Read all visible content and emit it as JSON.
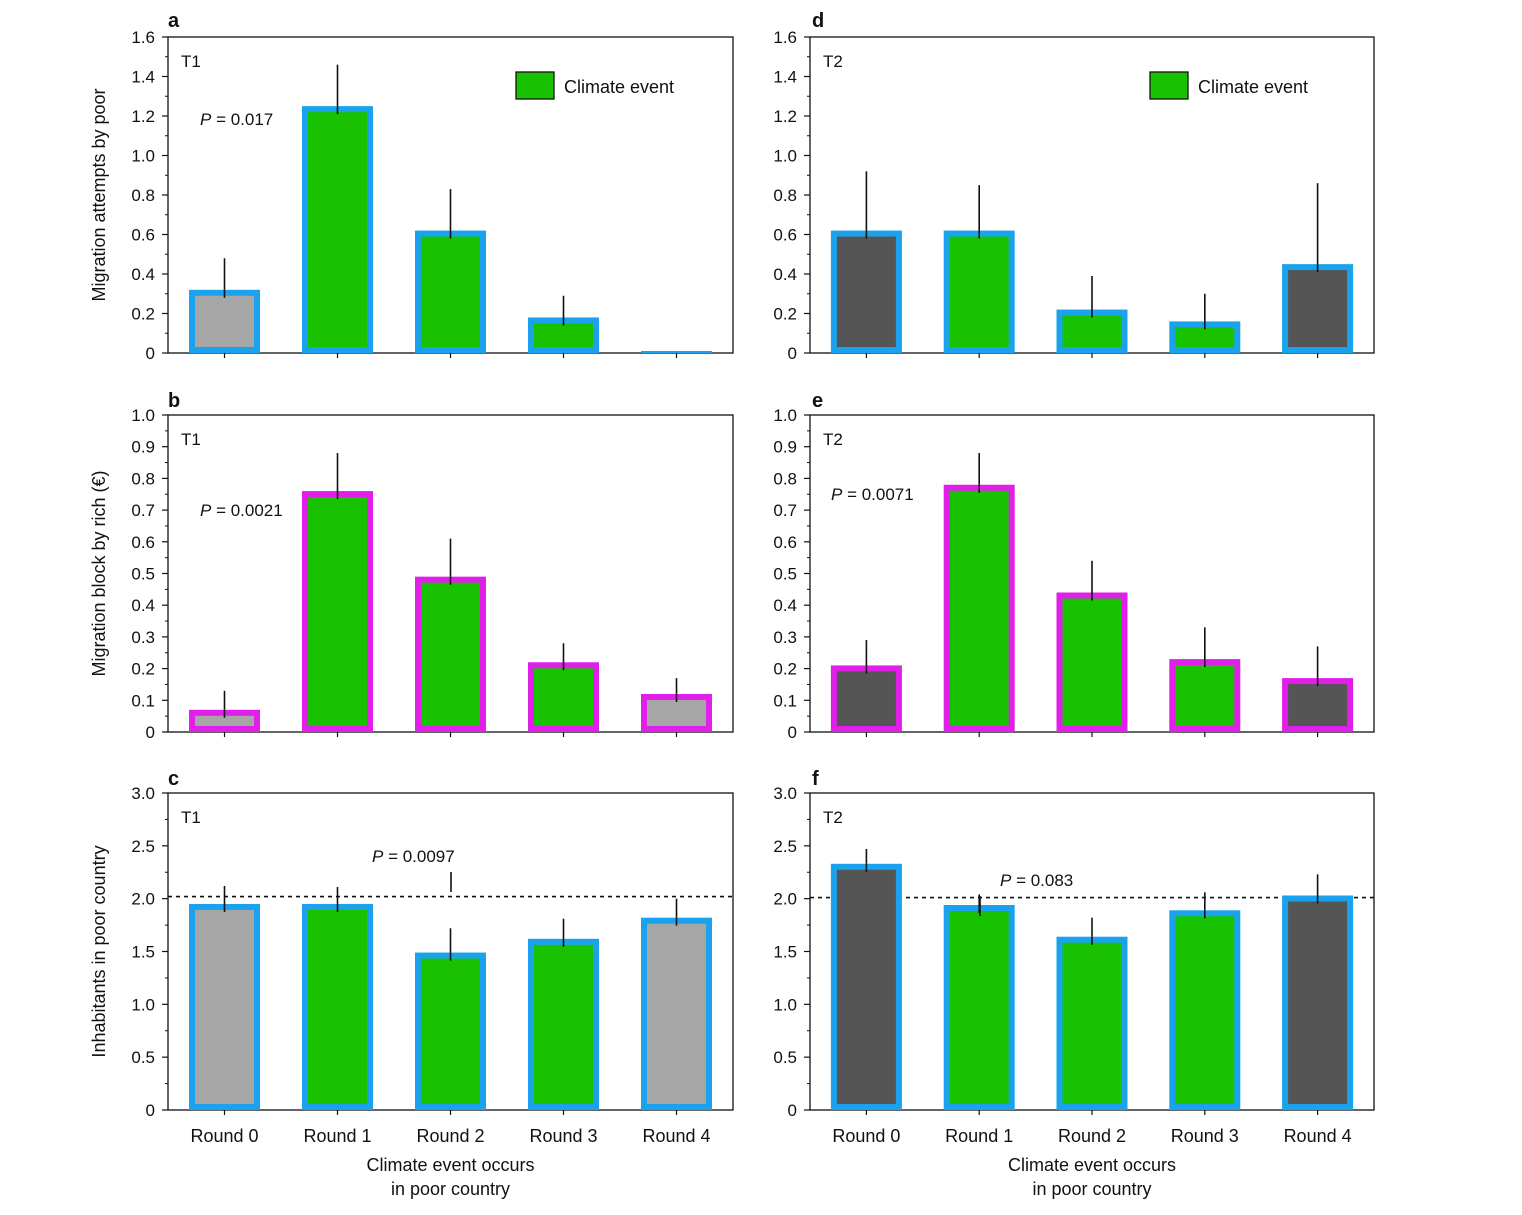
{
  "colors": {
    "climate": "#19c200",
    "no_event_t1": "#a6a6a6",
    "no_event_t2": "#555555",
    "outline_blue": "#1aa3ec",
    "outline_magenta": "#e01fe8",
    "axis": "#111111"
  },
  "legend": {
    "label": "Climate event"
  },
  "xlabel_lines": [
    "Climate event occurs",
    "in poor country"
  ],
  "chart_data": [
    {
      "panel": "a",
      "tag": "T1",
      "type": "bar",
      "ylabel": "Migration attempts by poor",
      "ylim": [
        0,
        1.6
      ],
      "yticks": [
        0,
        0.2,
        0.4,
        0.6,
        0.8,
        1.0,
        1.2,
        1.4,
        1.6
      ],
      "yticklabels": [
        "0",
        "0.2",
        "0.4",
        "0.6",
        "0.8",
        "1.0",
        "1.2",
        "1.4",
        "1.6"
      ],
      "categories": [
        "Round 0",
        "Round 1",
        "Round 2",
        "Round 3",
        "Round 4"
      ],
      "values": [
        0.32,
        1.25,
        0.62,
        0.18,
        0.01
      ],
      "error_upper": [
        0.48,
        1.46,
        0.83,
        0.29,
        0.01
      ],
      "climate_event": [
        false,
        true,
        true,
        true,
        false
      ],
      "outline": "blue",
      "show_xlabels": false,
      "legend": true,
      "pvalue": {
        "italic": "P",
        "text": " = 0.017"
      }
    },
    {
      "panel": "b",
      "tag": "T1",
      "type": "bar",
      "ylabel": "Migration block by rich (€)",
      "ylim": [
        0,
        1.0
      ],
      "yticks": [
        0,
        0.1,
        0.2,
        0.3,
        0.4,
        0.5,
        0.6,
        0.7,
        0.8,
        0.9,
        1.0
      ],
      "yticklabels": [
        "0",
        "0.1",
        "0.2",
        "0.3",
        "0.4",
        "0.5",
        "0.6",
        "0.7",
        "0.8",
        "0.9",
        "1.0"
      ],
      "categories": [
        "Round 0",
        "Round 1",
        "Round 2",
        "Round 3",
        "Round 4"
      ],
      "values": [
        0.07,
        0.76,
        0.49,
        0.22,
        0.12
      ],
      "error_upper": [
        0.13,
        0.88,
        0.61,
        0.28,
        0.17
      ],
      "climate_event": [
        false,
        true,
        true,
        true,
        false
      ],
      "outline": "magenta",
      "show_xlabels": false,
      "legend": false,
      "pvalue": {
        "italic": "P",
        "text": " = 0.0021"
      }
    },
    {
      "panel": "c",
      "tag": "T1",
      "type": "bar",
      "ylabel": "Inhabitants in poor country",
      "ylim": [
        0,
        3.0
      ],
      "yticks": [
        0,
        0.5,
        1.0,
        1.5,
        2.0,
        2.5,
        3.0
      ],
      "yticklabels": [
        "0",
        "0.5",
        "1.0",
        "1.5",
        "2.0",
        "2.5",
        "3.0"
      ],
      "categories": [
        "Round 0",
        "Round 1",
        "Round 2",
        "Round 3",
        "Round 4"
      ],
      "values": [
        1.95,
        1.95,
        1.49,
        1.62,
        1.82
      ],
      "error_upper": [
        2.12,
        2.11,
        1.72,
        1.81,
        2.0
      ],
      "climate_event": [
        false,
        true,
        true,
        true,
        false
      ],
      "outline": "blue",
      "show_xlabels": true,
      "legend": false,
      "reference_line": 2.02,
      "pvalue": {
        "italic": "P",
        "text": " = 0.0097"
      }
    },
    {
      "panel": "d",
      "tag": "T2",
      "type": "bar",
      "ylabel": "",
      "ylim": [
        0,
        1.6
      ],
      "yticks": [
        0,
        0.2,
        0.4,
        0.6,
        0.8,
        1.0,
        1.2,
        1.4,
        1.6
      ],
      "yticklabels": [
        "0",
        "0.2",
        "0.4",
        "0.6",
        "0.8",
        "1.0",
        "1.2",
        "1.4",
        "1.6"
      ],
      "categories": [
        "Round 0",
        "Round 1",
        "Round 2",
        "Round 3",
        "Round 4"
      ],
      "values": [
        0.62,
        0.62,
        0.22,
        0.16,
        0.45
      ],
      "error_upper": [
        0.92,
        0.85,
        0.39,
        0.3,
        0.86
      ],
      "climate_event": [
        false,
        true,
        true,
        true,
        false
      ],
      "outline": "blue",
      "show_xlabels": false,
      "legend": true,
      "pvalue": null
    },
    {
      "panel": "e",
      "tag": "T2",
      "type": "bar",
      "ylabel": "",
      "ylim": [
        0,
        1.0
      ],
      "yticks": [
        0,
        0.1,
        0.2,
        0.3,
        0.4,
        0.5,
        0.6,
        0.7,
        0.8,
        0.9,
        1.0
      ],
      "yticklabels": [
        "0",
        "0.1",
        "0.2",
        "0.3",
        "0.4",
        "0.5",
        "0.6",
        "0.7",
        "0.8",
        "0.9",
        "1.0"
      ],
      "categories": [
        "Round 0",
        "Round 1",
        "Round 2",
        "Round 3",
        "Round 4"
      ],
      "values": [
        0.21,
        0.78,
        0.44,
        0.23,
        0.17
      ],
      "error_upper": [
        0.29,
        0.88,
        0.54,
        0.33,
        0.27
      ],
      "climate_event": [
        false,
        true,
        true,
        true,
        false
      ],
      "outline": "magenta",
      "show_xlabels": false,
      "legend": false,
      "pvalue": {
        "italic": "P",
        "text": " = 0.0071"
      }
    },
    {
      "panel": "f",
      "tag": "T2",
      "type": "bar",
      "ylabel": "",
      "ylim": [
        0,
        3.0
      ],
      "yticks": [
        0,
        0.5,
        1.0,
        1.5,
        2.0,
        2.5,
        3.0
      ],
      "yticklabels": [
        "0",
        "0.5",
        "1.0",
        "1.5",
        "2.0",
        "2.5",
        "3.0"
      ],
      "categories": [
        "Round 0",
        "Round 1",
        "Round 2",
        "Round 3",
        "Round 4"
      ],
      "values": [
        2.33,
        1.94,
        1.64,
        1.89,
        2.03
      ],
      "error_upper": [
        2.47,
        2.04,
        1.82,
        2.06,
        2.23
      ],
      "climate_event": [
        false,
        true,
        true,
        true,
        false
      ],
      "outline": "blue",
      "show_xlabels": true,
      "legend": false,
      "reference_line": 2.01,
      "pvalue": {
        "italic": "P",
        "text": " = 0.083"
      }
    }
  ]
}
